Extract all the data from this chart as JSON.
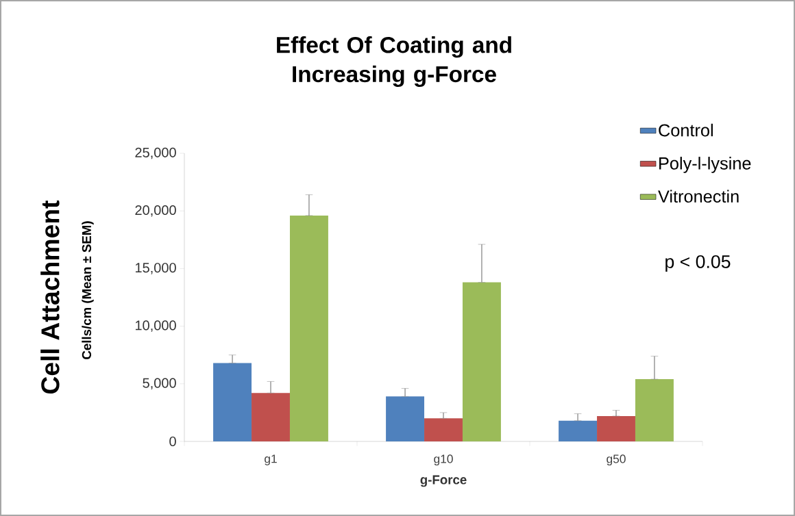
{
  "chart_data": {
    "type": "bar",
    "title": "Effect Of Coating and Increasing g-Force",
    "xlabel": "g-Force",
    "ylabel": "Cell Attachment",
    "categories": [
      "g1",
      "g10",
      "g50"
    ],
    "series": [
      {
        "name": "Control",
        "color": "#4f81bd",
        "values": [
          6800,
          3900,
          1800
        ],
        "errors": [
          [
            6800,
            7500
          ],
          [
            3900,
            4600
          ],
          [
            1800,
            2400
          ]
        ]
      },
      {
        "name": "Poly-l-lysine",
        "color": "#c0504d",
        "values": [
          4200,
          2000,
          2200
        ],
        "errors": [
          [
            4200,
            5200
          ],
          [
            2000,
            2500
          ],
          [
            2200,
            2700
          ]
        ]
      },
      {
        "name": "Vitronectin",
        "color": "#9bbb59",
        "values": [
          19600,
          13800,
          5400
        ],
        "errors": [
          [
            19600,
            21400
          ],
          [
            13800,
            17100
          ],
          [
            5400,
            7400
          ]
        ]
      }
    ],
    "ylim": [
      0,
      25000
    ],
    "yticks": [
      0,
      {
        "value": 5000,
        "label": "5,000"
      },
      {
        "value": 10000,
        "label": "10,000"
      },
      {
        "value": 15000,
        "label": "15,000"
      },
      {
        "value": 20000,
        "label": "20,000"
      },
      {
        "value": 25000,
        "label": "25,000"
      }
    ],
    "grid": false,
    "legend": "top right",
    "annotations": [
      "Cells/cm (Mean ± SEM)",
      "p < 0.05"
    ]
  }
}
